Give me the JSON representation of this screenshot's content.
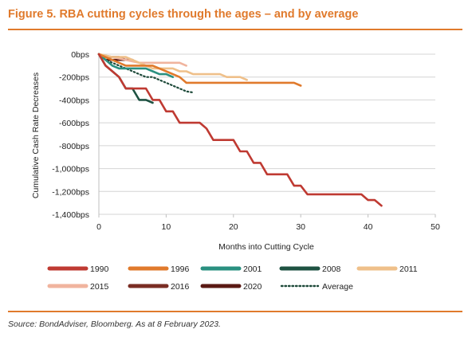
{
  "figure": {
    "title": "Figure 5. RBA cutting cycles through the ages – and by average",
    "source": "Source: BondAdviser, Bloomberg. As at 8 February 2023.",
    "accent_color": "#E07A2C"
  },
  "chart_data": {
    "type": "line",
    "title": "",
    "xlabel": "Months into Cutting Cycle",
    "ylabel": "Cumulative Cash Rate Decreases",
    "xlim": [
      0,
      50
    ],
    "ylim": [
      -1400,
      0
    ],
    "xticks": [
      0,
      10,
      20,
      30,
      40,
      50
    ],
    "xtick_labels": [
      "0",
      "10",
      "20",
      "30",
      "40",
      "50"
    ],
    "yticks": [
      0,
      -200,
      -400,
      -600,
      -800,
      -1000,
      -1200,
      -1400
    ],
    "ytick_labels": [
      "0bps",
      "-200bps",
      "-400bps",
      "-600bps",
      "-800bps",
      "-1,000bps",
      "-1,200bps",
      "-1,400bps"
    ],
    "grid": "horizontal",
    "legend_position": "bottom",
    "series": [
      {
        "name": "1990",
        "color": "#BF3A32",
        "dash": "solid",
        "points": [
          [
            0,
            0
          ],
          [
            1,
            -100
          ],
          [
            2,
            -150
          ],
          [
            3,
            -200
          ],
          [
            4,
            -300
          ],
          [
            5,
            -300
          ],
          [
            6,
            -300
          ],
          [
            7,
            -300
          ],
          [
            8,
            -400
          ],
          [
            9,
            -400
          ],
          [
            10,
            -500
          ],
          [
            11,
            -500
          ],
          [
            12,
            -600
          ],
          [
            13,
            -600
          ],
          [
            14,
            -600
          ],
          [
            15,
            -600
          ],
          [
            16,
            -650
          ],
          [
            17,
            -750
          ],
          [
            18,
            -750
          ],
          [
            19,
            -750
          ],
          [
            20,
            -750
          ],
          [
            21,
            -850
          ],
          [
            22,
            -850
          ],
          [
            23,
            -950
          ],
          [
            24,
            -950
          ],
          [
            25,
            -1050
          ],
          [
            26,
            -1050
          ],
          [
            27,
            -1050
          ],
          [
            28,
            -1050
          ],
          [
            29,
            -1150
          ],
          [
            30,
            -1150
          ],
          [
            31,
            -1225
          ],
          [
            32,
            -1225
          ],
          [
            33,
            -1225
          ],
          [
            34,
            -1225
          ],
          [
            35,
            -1225
          ],
          [
            36,
            -1225
          ],
          [
            37,
            -1225
          ],
          [
            38,
            -1225
          ],
          [
            39,
            -1225
          ],
          [
            40,
            -1275
          ],
          [
            41,
            -1275
          ],
          [
            42,
            -1325
          ]
        ]
      },
      {
        "name": "1996",
        "color": "#E07A2C",
        "dash": "solid",
        "points": [
          [
            0,
            0
          ],
          [
            4,
            -100
          ],
          [
            8,
            -100
          ],
          [
            10,
            -150
          ],
          [
            12,
            -200
          ],
          [
            13,
            -250
          ],
          [
            15,
            -250
          ],
          [
            20,
            -250
          ],
          [
            25,
            -250
          ],
          [
            29,
            -250
          ],
          [
            30,
            -275
          ]
        ]
      },
      {
        "name": "2001",
        "color": "#2A9080",
        "dash": "solid",
        "points": [
          [
            0,
            0
          ],
          [
            1,
            -50
          ],
          [
            2,
            -100
          ],
          [
            3,
            -125
          ],
          [
            4,
            -125
          ],
          [
            5,
            -125
          ],
          [
            6,
            -125
          ],
          [
            7,
            -125
          ],
          [
            8,
            -150
          ],
          [
            9,
            -175
          ],
          [
            10,
            -175
          ],
          [
            11,
            -200
          ]
        ]
      },
      {
        "name": "2008",
        "color": "#1E5242",
        "dash": "solid",
        "points": [
          [
            0,
            0
          ],
          [
            1,
            -100
          ],
          [
            2,
            -150
          ],
          [
            3,
            -200
          ],
          [
            4,
            -300
          ],
          [
            5,
            -300
          ],
          [
            6,
            -400
          ],
          [
            7,
            -400
          ],
          [
            8,
            -425
          ]
        ]
      },
      {
        "name": "2011",
        "color": "#EFC08A",
        "dash": "solid",
        "points": [
          [
            0,
            0
          ],
          [
            2,
            -25
          ],
          [
            4,
            -25
          ],
          [
            5,
            -50
          ],
          [
            6,
            -75
          ],
          [
            7,
            -100
          ],
          [
            8,
            -125
          ],
          [
            9,
            -125
          ],
          [
            10,
            -125
          ],
          [
            11,
            -125
          ],
          [
            12,
            -150
          ],
          [
            13,
            -150
          ],
          [
            14,
            -175
          ],
          [
            15,
            -175
          ],
          [
            16,
            -175
          ],
          [
            17,
            -175
          ],
          [
            18,
            -175
          ],
          [
            19,
            -200
          ],
          [
            20,
            -200
          ],
          [
            21,
            -200
          ],
          [
            22,
            -225
          ]
        ]
      },
      {
        "name": "2015",
        "color": "#F0B49E",
        "dash": "solid",
        "points": [
          [
            0,
            0
          ],
          [
            2,
            -25
          ],
          [
            4,
            -50
          ],
          [
            6,
            -75
          ],
          [
            8,
            -75
          ],
          [
            10,
            -75
          ],
          [
            12,
            -75
          ],
          [
            13,
            -100
          ]
        ]
      },
      {
        "name": "2016",
        "color": "#7A2D24",
        "dash": "solid",
        "points": [
          [
            0,
            0
          ],
          [
            1,
            -25
          ],
          [
            2,
            -25
          ],
          [
            3,
            -25
          ],
          [
            4,
            -50
          ],
          [
            5,
            -50
          ]
        ]
      },
      {
        "name": "2020",
        "color": "#5A1A14",
        "dash": "solid",
        "points": [
          [
            0,
            0
          ],
          [
            1,
            -50
          ],
          [
            2,
            -50
          ],
          [
            3,
            -50
          ],
          [
            4,
            -50
          ],
          [
            5,
            -50
          ]
        ]
      },
      {
        "name": "Average",
        "color": "#1E4A3A",
        "dash": "dotted",
        "points": [
          [
            0,
            0
          ],
          [
            1,
            -50
          ],
          [
            2,
            -75
          ],
          [
            3,
            -100
          ],
          [
            4,
            -125
          ],
          [
            5,
            -150
          ],
          [
            6,
            -175
          ],
          [
            7,
            -200
          ],
          [
            8,
            -200
          ],
          [
            9,
            -225
          ],
          [
            10,
            -250
          ],
          [
            11,
            -275
          ],
          [
            12,
            -300
          ],
          [
            13,
            -325
          ],
          [
            14,
            -335
          ]
        ]
      }
    ]
  }
}
